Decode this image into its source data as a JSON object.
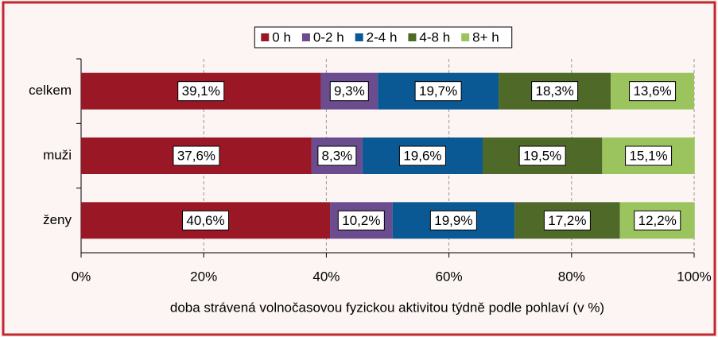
{
  "chart_data": {
    "type": "stacked-bar-horizontal",
    "x_label": "doba strávená volnočasovou fyzickou aktivitou týdně podle pohlaví (v %)",
    "categories": [
      "celkem",
      "muži",
      "ženy"
    ],
    "series": [
      {
        "name": "0 h",
        "color": "#9a1826",
        "values": [
          39.1,
          37.6,
          40.6
        ],
        "value_labels": [
          "39,1%",
          "37,6%",
          "40,6%"
        ]
      },
      {
        "name": "0-2 h",
        "color": "#6b4c8f",
        "values": [
          9.3,
          8.3,
          10.2
        ],
        "value_labels": [
          "9,3%",
          "8,3%",
          "10,2%"
        ]
      },
      {
        "name": "2-4 h",
        "color": "#0a5994",
        "values": [
          19.7,
          19.6,
          19.9
        ],
        "value_labels": [
          "19,7%",
          "19,6%",
          "19,9%"
        ]
      },
      {
        "name": "4-8 h",
        "color": "#4f6a28",
        "values": [
          18.3,
          19.5,
          17.2
        ],
        "value_labels": [
          "18,3%",
          "19,5%",
          "17,2%"
        ]
      },
      {
        "name": "8+ h",
        "color": "#9bc45e",
        "values": [
          13.6,
          15.1,
          12.2
        ],
        "value_labels": [
          "13,6%",
          "15,1%",
          "12,2%"
        ]
      }
    ],
    "xlim": [
      0,
      100
    ],
    "xticks": [
      {
        "value": 0,
        "label": "0%"
      },
      {
        "value": 20,
        "label": "20%"
      },
      {
        "value": 40,
        "label": "40%"
      },
      {
        "value": 60,
        "label": "60%"
      },
      {
        "value": 80,
        "label": "80%"
      },
      {
        "value": 100,
        "label": "100%"
      }
    ],
    "grid": true,
    "legend": "top"
  }
}
